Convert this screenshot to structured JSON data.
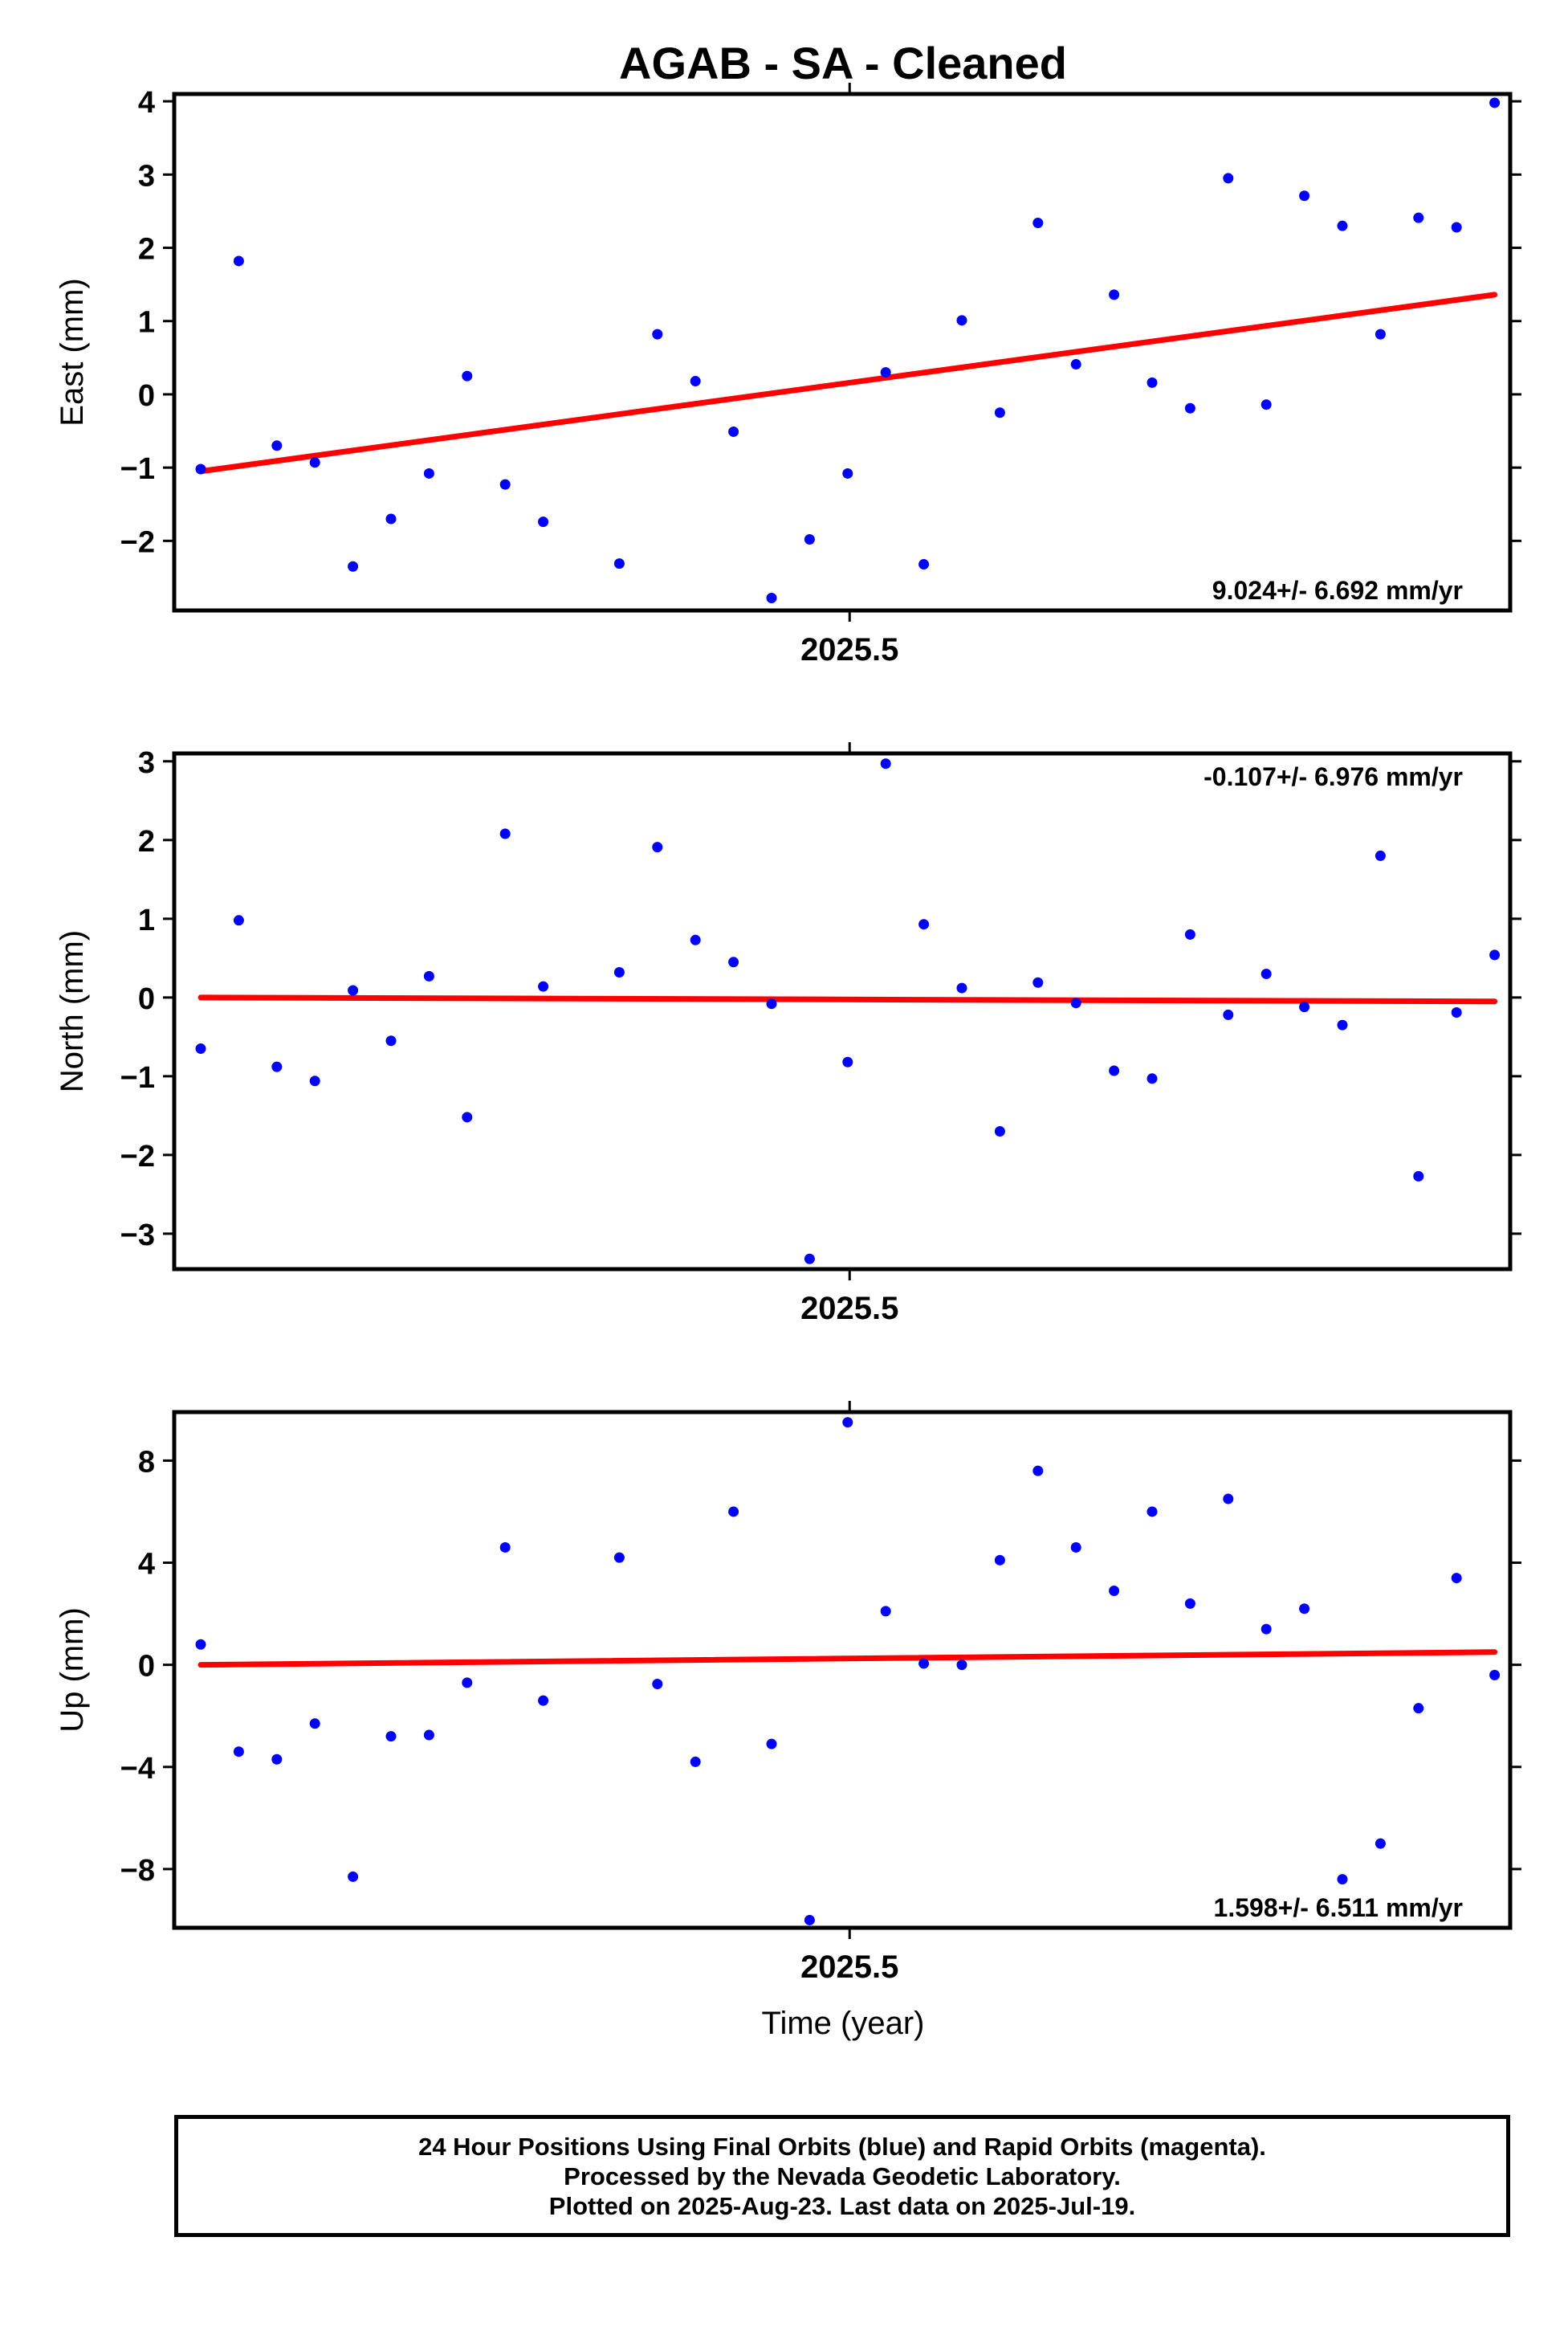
{
  "figure": {
    "title": "AGAB  - SA - Cleaned",
    "xlabel": "Time (year)",
    "colors": {
      "points": "#0000ff",
      "trend": "#ff0000",
      "axes": "#000000"
    }
  },
  "chart_data": [
    {
      "type": "scatter",
      "ylabel": "East (mm)",
      "ylim": [
        -2.95,
        4.1
      ],
      "yticks": [
        -2,
        -1,
        0,
        1,
        2,
        3,
        4
      ],
      "xlim": [
        2025.318,
        2025.678
      ],
      "xtick_label": "2025.5",
      "xtick_value": 2025.5,
      "rate_text": "9.024+/- 6.692 mm/yr",
      "rate_position": "bottom-right",
      "trend": [
        -1.05,
        1.36
      ],
      "series": [
        {
          "values": [
            -1.02,
            1.82,
            -0.7,
            -0.93,
            -2.35,
            -1.7,
            -1.08,
            0.25,
            -1.23,
            -1.74,
            null,
            -2.31,
            0.82,
            0.18,
            -0.51,
            -2.78,
            -1.98,
            -1.08,
            0.3,
            -2.32,
            1.01,
            -0.25,
            2.34,
            0.41,
            1.36,
            0.16,
            -0.19,
            2.95,
            -0.14,
            2.71,
            2.3,
            0.82,
            2.41,
            2.28,
            3.98
          ]
        }
      ]
    },
    {
      "type": "scatter",
      "ylabel": "North (mm)",
      "ylim": [
        -3.45,
        3.1
      ],
      "yticks": [
        -3,
        -2,
        -1,
        0,
        1,
        2,
        3
      ],
      "xlim": [
        2025.318,
        2025.678
      ],
      "xtick_label": "2025.5",
      "xtick_value": 2025.5,
      "rate_text": "-0.107+/- 6.976 mm/yr",
      "rate_position": "top-right",
      "trend": [
        0.0,
        -0.05
      ],
      "series": [
        {
          "values": [
            -0.65,
            0.98,
            -0.88,
            -1.06,
            0.09,
            -0.55,
            0.27,
            -1.52,
            2.08,
            0.14,
            null,
            0.32,
            1.91,
            0.73,
            0.45,
            -0.08,
            -3.32,
            -0.82,
            2.97,
            0.93,
            0.12,
            -1.7,
            0.19,
            -0.07,
            -0.93,
            -1.03,
            0.8,
            -0.22,
            0.3,
            -0.12,
            -0.35,
            1.8,
            -2.27,
            -0.19,
            0.54
          ]
        }
      ]
    },
    {
      "type": "scatter",
      "ylabel": "Up (mm)",
      "ylim": [
        -10.3,
        9.9
      ],
      "yticks": [
        -8,
        -4,
        0,
        4,
        8
      ],
      "xlim": [
        2025.318,
        2025.678
      ],
      "xtick_label": "2025.5",
      "xtick_value": 2025.5,
      "rate_text": "1.598+/- 6.511 mm/yr",
      "rate_position": "bottom-right",
      "trend": [
        0.0,
        0.5
      ],
      "series": [
        {
          "values": [
            0.8,
            -3.4,
            -3.7,
            -2.3,
            -8.3,
            -2.8,
            -2.75,
            -0.7,
            4.6,
            -1.4,
            null,
            4.2,
            -0.75,
            -3.8,
            6.0,
            -3.1,
            -10.0,
            9.5,
            2.1,
            0.05,
            0.0,
            4.1,
            7.6,
            4.6,
            2.9,
            6.0,
            2.4,
            6.5,
            1.4,
            2.2,
            -8.4,
            -7.0,
            -1.7,
            3.4,
            -0.4
          ]
        }
      ]
    }
  ],
  "footer": {
    "line1": "24 Hour Positions Using Final Orbits (blue) and Rapid Orbits (magenta).",
    "line2": "Processed by the Nevada Geodetic Laboratory.",
    "line3": "Plotted on 2025-Aug-23. Last data on 2025-Jul-19."
  }
}
